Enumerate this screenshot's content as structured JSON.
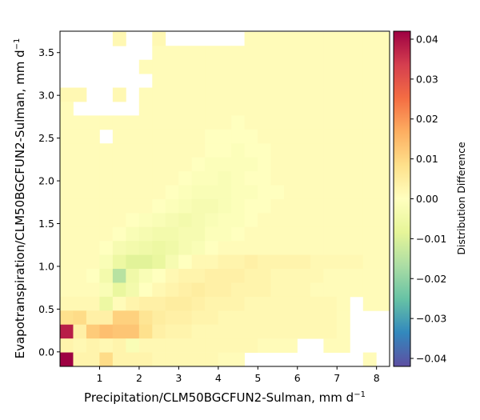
{
  "chart_data": {
    "type": "heatmap",
    "xlabel_text": "Precipitation/CLM50BGCFUN2-Sulman,  mm d",
    "xlabel_sup": "−1",
    "ylabel_text": "Evapotranspiration/CLM50BGCFUN2-Sulman,  mm d",
    "ylabel_sup": "−1",
    "colorbar_label": "Distribution Difference",
    "x_ticks": [
      1,
      2,
      3,
      4,
      5,
      6,
      7,
      8
    ],
    "x_tick_labels": [
      "1",
      "2",
      "3",
      "4",
      "5",
      "6",
      "7",
      "8"
    ],
    "y_ticks": [
      0.0,
      0.5,
      1.0,
      1.5,
      2.0,
      2.5,
      3.0,
      3.5
    ],
    "y_tick_labels": [
      "0.0",
      "0.5",
      "1.0",
      "1.5",
      "2.0",
      "2.5",
      "3.0",
      "3.5"
    ],
    "colorbar_ticks": [
      0.04,
      0.03,
      0.02,
      0.01,
      0.0,
      -0.01,
      -0.02,
      -0.03,
      -0.04
    ],
    "colorbar_tick_labels": [
      "0.04",
      "0.03",
      "0.02",
      "0.01",
      "0.00",
      "−0.01",
      "−0.02",
      "−0.03",
      "−0.04"
    ],
    "xlim": [
      0.0,
      8.33
    ],
    "ylim": [
      -0.17,
      3.75
    ],
    "clim": [
      -0.042,
      0.042
    ],
    "colormap": "Spectral_r",
    "grid": false,
    "bin_x": {
      "start": 0.0,
      "width": 0.333,
      "count": 25
    },
    "bin_y": {
      "start": -0.17,
      "width": 0.163,
      "count": 24
    },
    "cells_rows_top_to_bottom": [
      "....+..+......???????????",
      ".......??????????????????",
      "......???????????????????",
      "..**.*.??????????????????",
      ".?????.??????????????????",
      "?....????????????????????",
      "?????????????????????????",
      "???.?????????????????????",
      "?????????????????????????",
      "?????????????????????????",
      "?????????????????????????",
      "?????????????????????????",
      "???????-=??????????????????",
      "?????--?????????????????",
      "????-==???????????????",
      "???????????????????????",
      "???=*-????????????????",
      "???*-????+++++++????",
      "??-+?????????????.???",
      "??+++++????????????",
      "%%+@@&+???????????..",
      "$?+@@+???????????..",
      "?????.?????.????.?",
      "%?+??+??????????."
    ],
    "cells": [
      [
        0.0,
        0.0
      ],
      [
        0.0,
        0.0
      ]
    ],
    "values_by_row": [
      [
        null,
        null,
        null,
        null,
        0.002,
        null,
        null,
        0.002,
        null,
        null,
        null,
        null,
        null,
        null,
        0.001,
        0.001,
        0.001,
        0.001,
        0.001,
        0.001,
        0.001,
        0.001,
        0.001,
        0.001,
        0.001
      ],
      [
        null,
        null,
        null,
        null,
        null,
        null,
        null,
        0.001,
        0.001,
        0.001,
        0.001,
        0.001,
        0.001,
        0.001,
        0.001,
        0.001,
        0.001,
        0.001,
        0.001,
        0.001,
        0.001,
        0.001,
        0.001,
        0.001,
        0.001
      ],
      [
        null,
        null,
        null,
        null,
        null,
        null,
        0.001,
        0.001,
        0.001,
        0.001,
        0.001,
        0.001,
        0.001,
        0.001,
        0.001,
        0.001,
        0.001,
        0.001,
        0.001,
        0.001,
        0.001,
        0.001,
        0.001,
        0.001,
        0.001
      ],
      [
        null,
        null,
        null,
        null,
        null,
        null,
        null,
        0.001,
        0.001,
        0.001,
        0.001,
        0.001,
        0.001,
        0.001,
        0.001,
        0.001,
        0.001,
        0.001,
        0.001,
        0.001,
        0.001,
        0.001,
        0.001,
        0.001,
        0.001
      ],
      [
        0.002,
        0.002,
        null,
        null,
        0.002,
        null,
        0.001,
        0.001,
        0.001,
        0.001,
        0.001,
        0.001,
        0.001,
        0.001,
        0.001,
        0.001,
        0.001,
        0.001,
        0.001,
        0.001,
        0.001,
        0.001,
        0.001,
        0.001,
        0.001
      ],
      [
        0.001,
        null,
        null,
        null,
        null,
        null,
        0.001,
        0.001,
        0.001,
        0.001,
        0.001,
        0.001,
        0.001,
        0.001,
        0.001,
        0.001,
        0.001,
        0.001,
        0.001,
        0.001,
        0.001,
        0.001,
        0.001,
        0.001,
        0.001
      ],
      [
        0.001,
        0.001,
        0.001,
        0.001,
        0.001,
        0.001,
        0.001,
        0.001,
        0.001,
        0.001,
        0.001,
        0.001,
        0.001,
        0.0,
        0.001,
        0.001,
        0.001,
        0.001,
        0.001,
        0.001,
        0.001,
        0.001,
        0.001,
        0.001,
        0.001
      ],
      [
        0.001,
        0.001,
        0.001,
        null,
        0.001,
        0.001,
        0.001,
        0.001,
        0.001,
        0.001,
        0.001,
        0.0,
        0.0,
        0.0,
        0.0,
        0.001,
        0.001,
        0.001,
        0.001,
        0.001,
        0.001,
        0.001,
        0.001,
        0.001,
        0.001
      ],
      [
        0.001,
        0.001,
        0.001,
        0.001,
        0.001,
        0.001,
        0.001,
        0.001,
        0.001,
        0.001,
        0.001,
        0.0,
        0.0,
        -0.001,
        0.0,
        0.0,
        0.001,
        0.001,
        0.001,
        0.001,
        0.001,
        0.001,
        0.001,
        0.001,
        0.001
      ],
      [
        0.001,
        0.001,
        0.001,
        0.001,
        0.001,
        0.001,
        0.001,
        0.001,
        0.001,
        0.001,
        0.0,
        -0.001,
        -0.001,
        -0.001,
        -0.001,
        0.0,
        0.001,
        0.001,
        0.001,
        0.001,
        0.001,
        0.001,
        0.001,
        0.001,
        0.001
      ],
      [
        0.001,
        0.001,
        0.001,
        0.001,
        0.001,
        0.001,
        0.001,
        0.001,
        0.001,
        0.0,
        -0.001,
        -0.001,
        -0.002,
        -0.001,
        0.0,
        0.0,
        0.001,
        0.001,
        0.001,
        0.001,
        0.001,
        0.001,
        0.001,
        0.001,
        0.001
      ],
      [
        0.001,
        0.001,
        0.001,
        0.001,
        0.001,
        0.001,
        0.001,
        0.001,
        0.0,
        -0.001,
        -0.002,
        -0.002,
        -0.002,
        -0.001,
        -0.001,
        0.0,
        0.0,
        0.001,
        0.001,
        0.001,
        0.001,
        0.001,
        0.001,
        0.001,
        0.001
      ],
      [
        0.001,
        0.001,
        0.001,
        0.001,
        0.001,
        0.001,
        0.001,
        0.0,
        -0.001,
        -0.002,
        -0.003,
        -0.003,
        -0.002,
        -0.001,
        0.0,
        0.0,
        0.001,
        0.001,
        0.001,
        0.001,
        0.001,
        0.001,
        0.001,
        0.001,
        0.001
      ],
      [
        0.001,
        0.001,
        0.001,
        0.001,
        0.001,
        0.0,
        -0.001,
        -0.002,
        -0.003,
        -0.004,
        -0.003,
        -0.002,
        -0.001,
        -0.001,
        0.0,
        0.001,
        0.001,
        0.001,
        0.001,
        0.001,
        0.001,
        0.001,
        0.001,
        0.001,
        0.001
      ],
      [
        0.001,
        0.001,
        0.001,
        0.001,
        0.0,
        -0.002,
        -0.003,
        -0.004,
        -0.004,
        -0.003,
        -0.003,
        -0.001,
        -0.001,
        0.0,
        0.001,
        0.001,
        0.001,
        0.001,
        0.001,
        0.001,
        0.001,
        0.001,
        0.001,
        0.001,
        0.001
      ],
      [
        0.001,
        0.001,
        0.001,
        0.0,
        -0.003,
        -0.004,
        -0.005,
        -0.006,
        -0.005,
        -0.003,
        -0.002,
        0.0,
        0.001,
        0.001,
        0.001,
        0.001,
        0.001,
        0.001,
        0.001,
        0.001,
        0.001,
        0.001,
        0.001,
        0.001,
        0.001
      ],
      [
        0.001,
        0.001,
        0.001,
        -0.002,
        -0.006,
        -0.009,
        -0.009,
        -0.007,
        -0.003,
        0.0,
        0.002,
        0.002,
        0.003,
        0.003,
        0.004,
        0.003,
        0.003,
        0.003,
        0.003,
        0.002,
        0.002,
        0.002,
        0.002,
        0.001,
        0.001
      ],
      [
        0.001,
        0.001,
        0.0,
        -0.004,
        -0.015,
        -0.005,
        -0.002,
        0.0,
        0.002,
        0.003,
        0.003,
        0.004,
        0.004,
        0.004,
        0.003,
        0.003,
        0.002,
        0.002,
        0.002,
        0.002,
        0.001,
        0.001,
        0.001,
        0.001,
        0.001
      ],
      [
        0.001,
        0.001,
        0.001,
        -0.002,
        -0.007,
        -0.004,
        0.0,
        0.002,
        0.003,
        0.004,
        0.005,
        0.004,
        0.004,
        0.003,
        0.003,
        0.003,
        0.002,
        0.002,
        0.002,
        0.001,
        0.001,
        0.001,
        0.001,
        0.001,
        0.001
      ],
      [
        0.002,
        0.002,
        0.002,
        -0.006,
        0.001,
        0.003,
        0.004,
        0.004,
        0.005,
        0.005,
        0.004,
        0.003,
        0.003,
        0.003,
        0.002,
        0.002,
        0.002,
        0.002,
        0.002,
        0.002,
        0.002,
        0.001,
        null,
        0.001,
        0.001
      ],
      [
        0.008,
        0.009,
        0.004,
        0.004,
        0.011,
        0.011,
        0.007,
        0.005,
        0.004,
        0.004,
        0.003,
        0.003,
        0.002,
        0.002,
        0.002,
        0.002,
        0.002,
        0.002,
        0.002,
        0.002,
        0.002,
        0.001,
        null,
        null,
        null
      ],
      [
        0.038,
        0.004,
        0.012,
        0.014,
        0.013,
        0.013,
        0.008,
        0.004,
        0.003,
        0.003,
        0.002,
        0.002,
        0.002,
        0.002,
        0.002,
        0.002,
        0.002,
        0.002,
        0.002,
        0.002,
        0.002,
        0.001,
        null,
        null,
        null
      ],
      [
        0.003,
        0.002,
        0.003,
        0.002,
        0.003,
        -0.002,
        0.002,
        0.002,
        0.002,
        0.002,
        0.002,
        0.002,
        0.002,
        0.002,
        0.002,
        0.001,
        0.001,
        0.001,
        null,
        null,
        0.001,
        0.001,
        null,
        null,
        null
      ],
      [
        0.042,
        0.003,
        0.003,
        0.009,
        0.003,
        0.003,
        0.003,
        0.002,
        0.002,
        0.002,
        0.002,
        0.002,
        0.001,
        0.001,
        null,
        null,
        null,
        null,
        null,
        null,
        null,
        null,
        null,
        0.001,
        null
      ]
    ]
  }
}
